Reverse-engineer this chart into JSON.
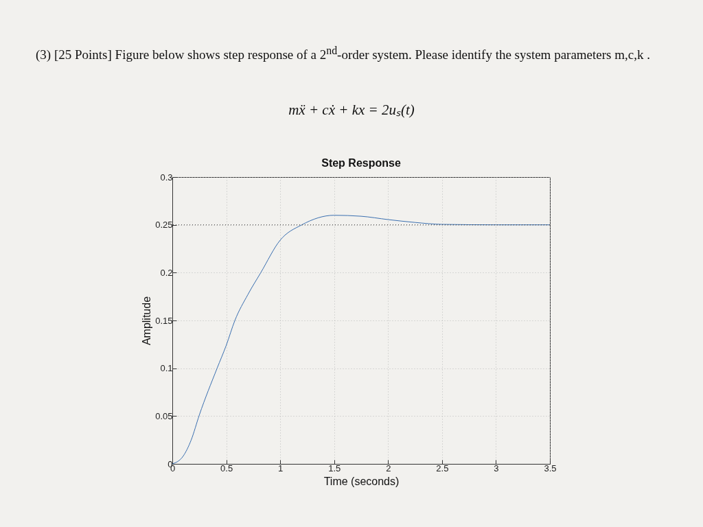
{
  "chart_data": {
    "type": "line",
    "title": "Step Response",
    "xlabel": "Time (seconds)",
    "ylabel": "Amplitude",
    "annotations": [
      "(3) [25 Points] Figure below shows step response of a 2$^{nd}$-order system. Please identify the system parameters m,c,k .",
      "mẍ + cẋ + kx = 2uₛ(t)"
    ],
    "x": [
      0,
      0.1,
      0.175,
      0.25,
      0.415,
      0.5,
      0.58,
      0.7,
      0.82,
      1,
      1.2,
      1.5,
      1.75,
      2,
      2.25,
      2.5,
      3,
      3.5
    ],
    "series": [
      {
        "color": "#3a6fb0",
        "values": [
          0,
          0.008,
          0.025,
          0.051,
          0.1,
          0.124,
          0.15,
          0.177,
          0.2,
          0.234,
          0.25,
          0.26,
          0.259,
          0.2555,
          0.2525,
          0.2505,
          0.25,
          0.25
        ]
      }
    ],
    "xlim": [
      0,
      3.5
    ],
    "ylim": [
      0,
      0.3
    ],
    "xticks": [
      0,
      0.5,
      1,
      1.5,
      2,
      2.5,
      3,
      3.5
    ],
    "yticks": [
      0,
      0.05,
      0.1,
      0.15,
      0.2,
      0.25,
      0.3
    ],
    "grid": true,
    "ref_lines": [
      {
        "axis": "y",
        "value": 0.25,
        "line_style": "dotted",
        "color": "#333333"
      }
    ]
  }
}
